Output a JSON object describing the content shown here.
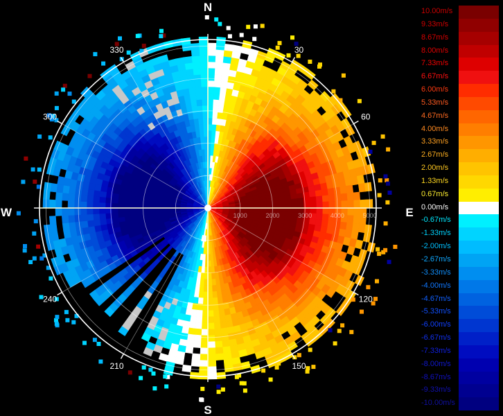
{
  "chart_data": {
    "type": "polar-ppi",
    "compass": {
      "north": "N",
      "south": "S",
      "east": "E",
      "west": "W"
    },
    "azimuth_labels": [
      "30",
      "60",
      "120",
      "150",
      "210",
      "240",
      "300",
      "330"
    ],
    "range_labels": [
      "1000",
      "2000",
      "3000",
      "4000",
      "5000"
    ],
    "range_max_m": 5200,
    "velocity_range_ms": [
      -10.0,
      10.0
    ],
    "legend": [
      {
        "label": "10.00m/s",
        "color": "#7a0000",
        "text_color": "#c80000"
      },
      {
        "label": "9.33m/s",
        "color": "#900000",
        "text_color": "#d00000"
      },
      {
        "label": "8.67m/s",
        "color": "#a60000",
        "text_color": "#d80000"
      },
      {
        "label": "8.00m/s",
        "color": "#c00000",
        "text_color": "#e00000"
      },
      {
        "label": "7.33m/s",
        "color": "#de0000",
        "text_color": "#f00000"
      },
      {
        "label": "6.67m/s",
        "color": "#f01010",
        "text_color": "#ff1010"
      },
      {
        "label": "6.00m/s",
        "color": "#ff2c00",
        "text_color": "#ff3a10"
      },
      {
        "label": "5.33m/s",
        "color": "#ff4a00",
        "text_color": "#ff5a20"
      },
      {
        "label": "4.67m/s",
        "color": "#ff6600",
        "text_color": "#ff6a20"
      },
      {
        "label": "4.00m/s",
        "color": "#ff7e00",
        "text_color": "#ff8a20"
      },
      {
        "label": "3.33m/s",
        "color": "#ff9600",
        "text_color": "#ffa020"
      },
      {
        "label": "2.67m/s",
        "color": "#ffae00",
        "text_color": "#ffb020"
      },
      {
        "label": "2.00m/s",
        "color": "#ffc400",
        "text_color": "#ffc820"
      },
      {
        "label": "1.33m/s",
        "color": "#ffd800",
        "text_color": "#ffd820"
      },
      {
        "label": "0.67m/s",
        "color": "#ffee00",
        "text_color": "#ffee30"
      },
      {
        "label": "0.00m/s",
        "color": "#ffffff",
        "text_color": "#ffffff"
      },
      {
        "label": "-0.67m/s",
        "color": "#00f0ff",
        "text_color": "#00e8ff"
      },
      {
        "label": "-1.33m/s",
        "color": "#00d4ff",
        "text_color": "#00d4ff"
      },
      {
        "label": "-2.00m/s",
        "color": "#00bcff",
        "text_color": "#00c0ff"
      },
      {
        "label": "-2.67m/s",
        "color": "#00a4f4",
        "text_color": "#10a8ff"
      },
      {
        "label": "-3.33m/s",
        "color": "#008ef0",
        "text_color": "#1090ff"
      },
      {
        "label": "-4.00m/s",
        "color": "#0078e8",
        "text_color": "#1078ff"
      },
      {
        "label": "-4.67m/s",
        "color": "#0062e0",
        "text_color": "#1060ff"
      },
      {
        "label": "-5.33m/s",
        "color": "#004cd8",
        "text_color": "#1050ff"
      },
      {
        "label": "-6.00m/s",
        "color": "#0036d0",
        "text_color": "#1040ff"
      },
      {
        "label": "-6.67m/s",
        "color": "#0020c8",
        "text_color": "#1030f0"
      },
      {
        "label": "-7.33m/s",
        "color": "#000cc0",
        "text_color": "#1020e0"
      },
      {
        "label": "-8.00m/s",
        "color": "#0000b0",
        "text_color": "#1018d0"
      },
      {
        "label": "-8.67m/s",
        "color": "#0000a0",
        "text_color": "#1010c0"
      },
      {
        "label": "-9.33m/s",
        "color": "#000090",
        "text_color": "#1010b0"
      },
      {
        "label": "-10.00m/s",
        "color": "#000080",
        "text_color": "#1010a0"
      }
    ]
  }
}
